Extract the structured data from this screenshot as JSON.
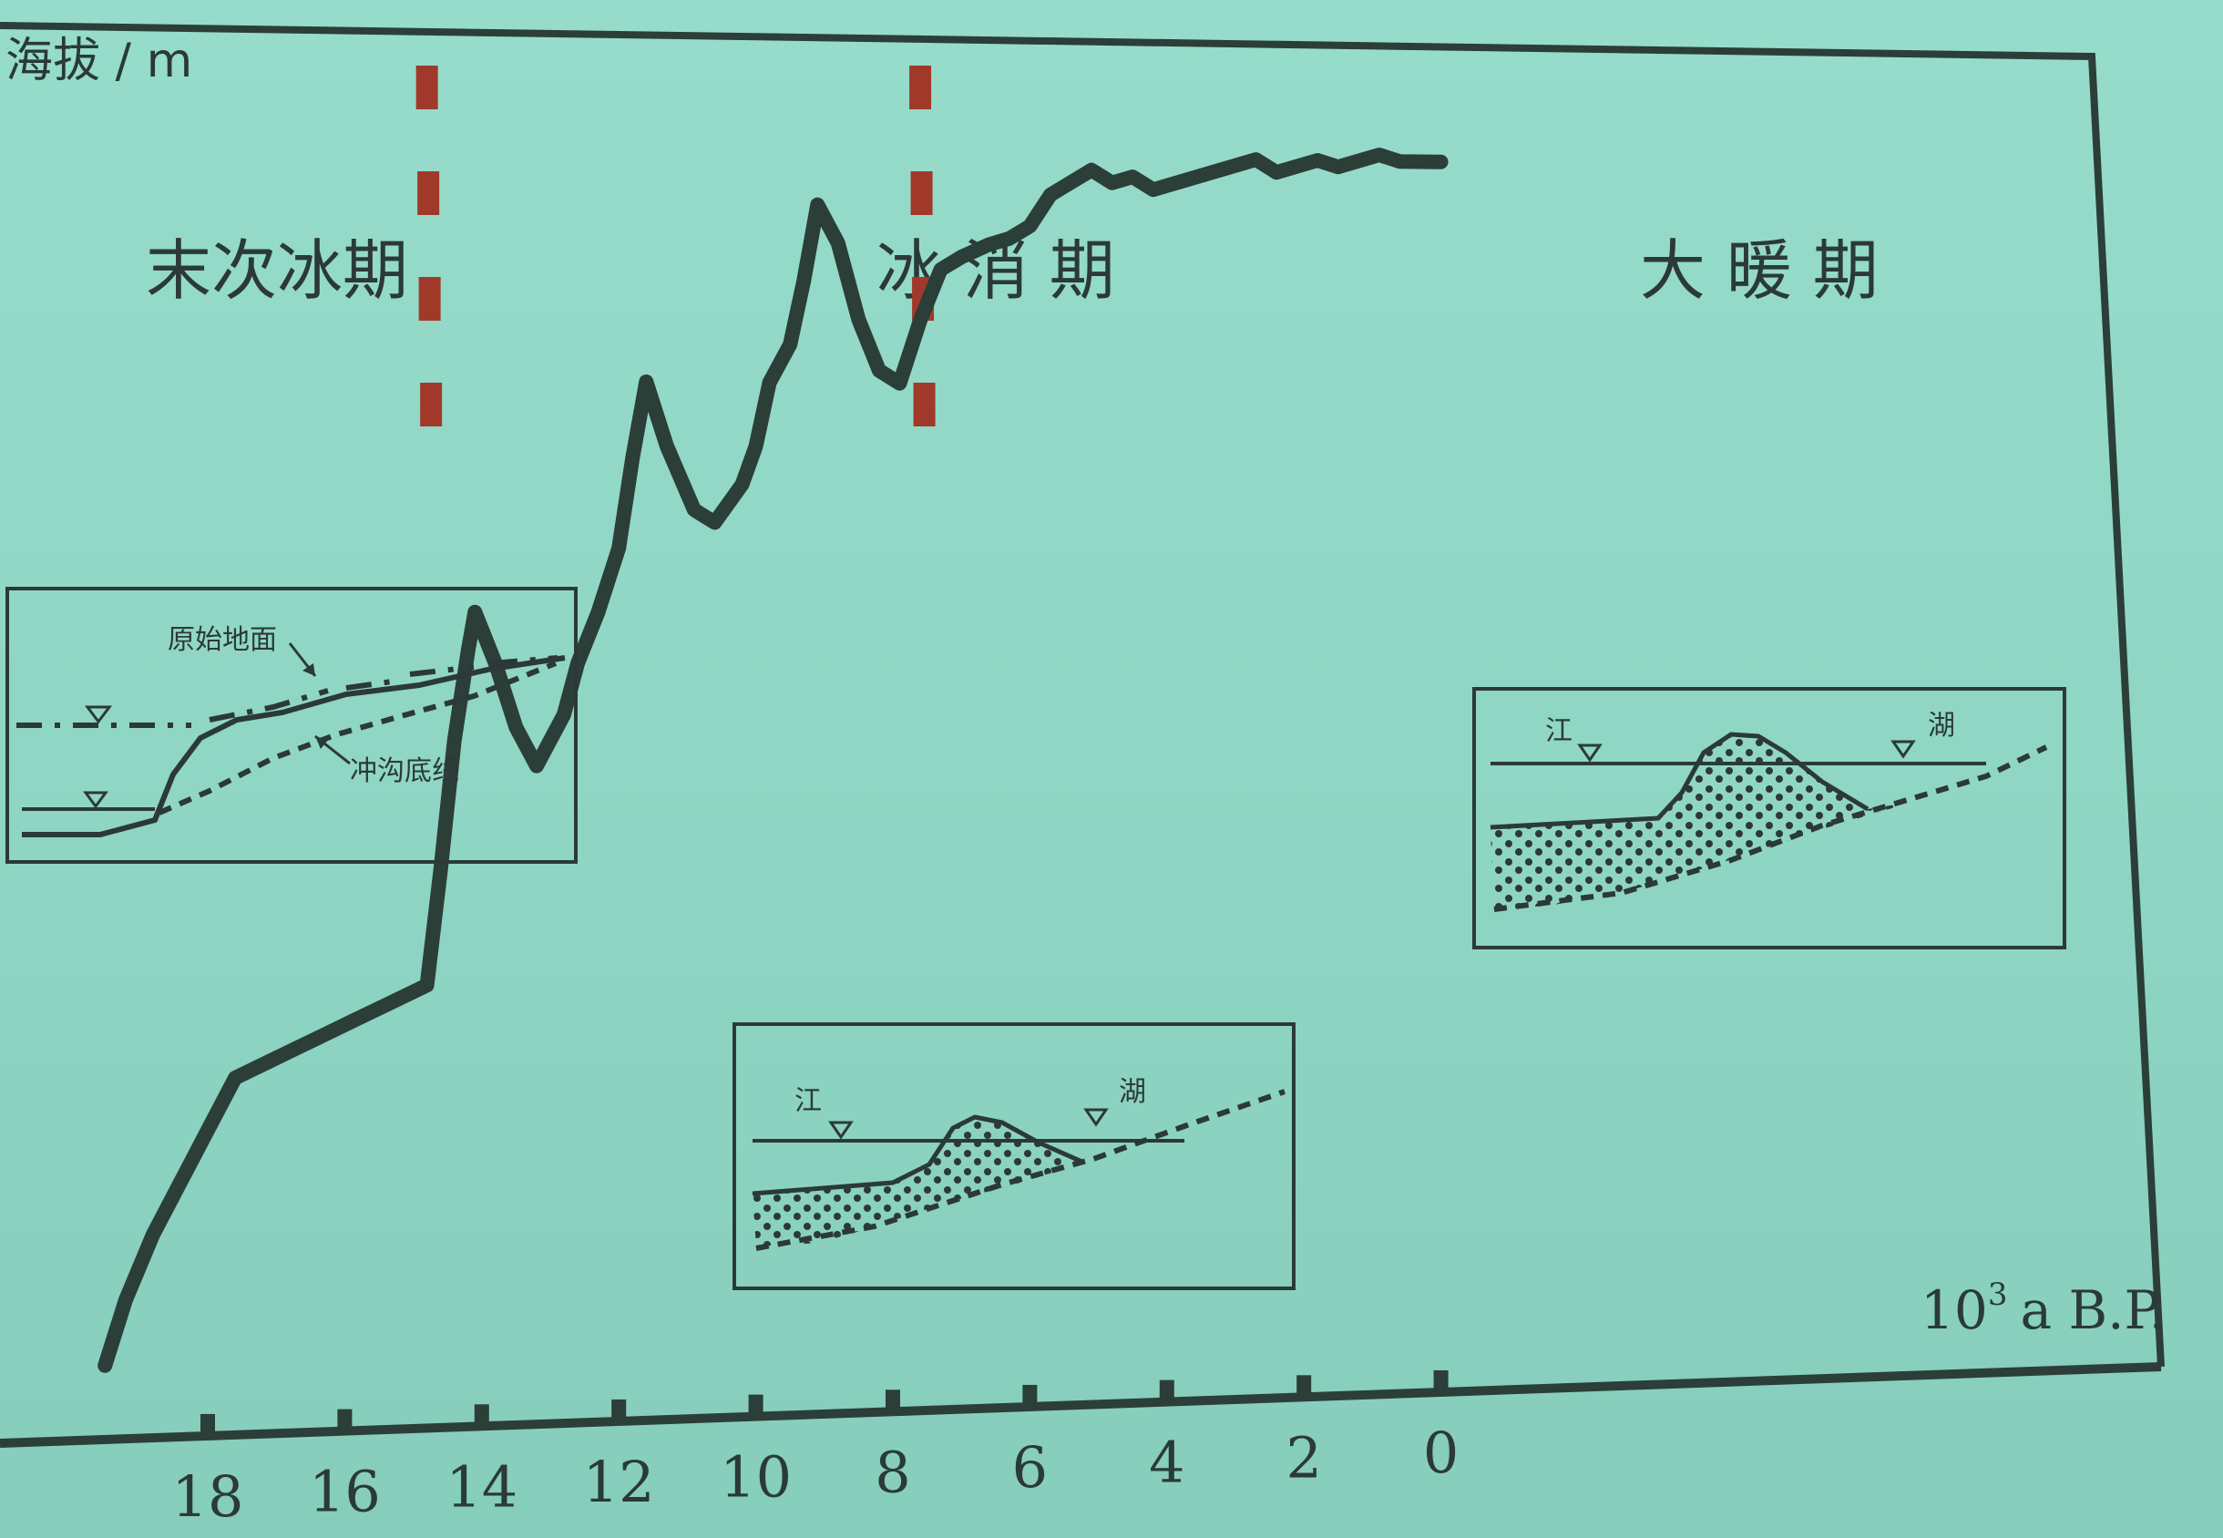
{
  "chart_data": {
    "type": "line",
    "title": "",
    "ylabel": "海拔 / m",
    "xlabel": "10³ a B.P.",
    "xlabel_base": "10",
    "xlabel_exp": "3",
    "xlabel_unit": "a B.P.",
    "x_reversed": true,
    "xlim": [
      19.5,
      0
    ],
    "ylim": [
      0,
      100
    ],
    "x_ticks": [
      18,
      16,
      14,
      12,
      10,
      8,
      6,
      4,
      2,
      0
    ],
    "grid": false,
    "series": [
      {
        "x": [
          19.5,
          19.2,
          18.8,
          18.4,
          18.0,
          17.6,
          17.2,
          16.8,
          16.4,
          16.0,
          15.6,
          15.2,
          14.8,
          14.6,
          14.4,
          14.2,
          14.1,
          13.8,
          13.5,
          13.2,
          12.8,
          12.6,
          12.3,
          12.0,
          11.8,
          11.6,
          11.3,
          10.9,
          10.6,
          10.2,
          10.0,
          9.8,
          9.5,
          9.3,
          9.1,
          8.8,
          8.5,
          8.2,
          7.9,
          7.6,
          7.3,
          7.0,
          6.6,
          6.3,
          6.0,
          5.7,
          5.4,
          5.1,
          4.8,
          4.5,
          4.2,
          3.9,
          3.6,
          3.3,
          3.0,
          2.7,
          2.4,
          2.1,
          1.8,
          1.5,
          1.2,
          0.9,
          0.6,
          0.3,
          0.0
        ],
        "y": [
          2,
          7,
          12,
          16,
          20,
          24,
          25,
          26,
          27,
          28,
          29,
          30,
          31,
          40,
          50,
          57,
          60,
          56,
          51,
          48,
          52,
          56,
          60,
          65,
          72,
          78,
          73,
          68,
          67,
          70,
          73,
          78,
          81,
          86,
          92,
          89,
          83,
          79,
          78,
          83,
          87,
          88,
          89,
          89.5,
          90.5,
          93,
          94,
          95,
          94,
          94.5,
          93.5,
          94,
          94.5,
          95,
          95.5,
          96,
          95,
          95.5,
          96,
          95.5,
          96,
          96.5,
          96,
          96,
          96
        ]
      }
    ]
  },
  "periods": [
    {
      "label": "末次冰期"
    },
    {
      "label": "冰 消 期"
    },
    {
      "label": "大 暖 期"
    }
  ],
  "period_boundaries": [
    14.8,
    7.6
  ],
  "colors": {
    "background": "#93d9c8",
    "line": "#2c3e38",
    "boundary": "#a1392a",
    "ink": "#2b3a36"
  },
  "insets": [
    {
      "id": "glacial",
      "labels": {
        "surface": "原始地面",
        "channel": "冲沟底线"
      }
    },
    {
      "id": "deglacial",
      "labels": {
        "river": "江",
        "lake": "湖"
      }
    },
    {
      "id": "warm",
      "labels": {
        "river": "江",
        "lake": "湖"
      }
    }
  ]
}
